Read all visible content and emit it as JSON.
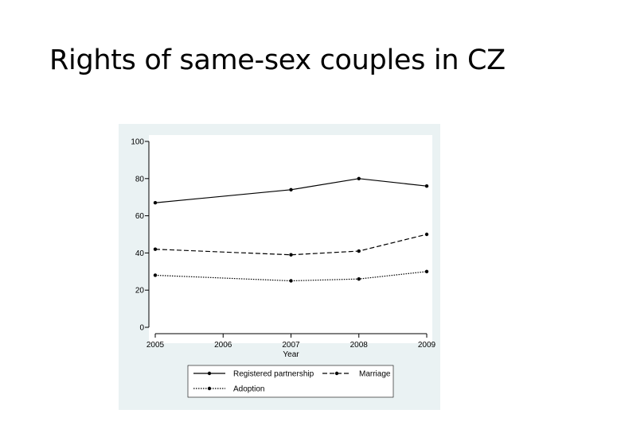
{
  "slide": {
    "title": "Rights of same-sex couples in CZ"
  },
  "chart_data": {
    "type": "line",
    "title": "",
    "xlabel": "Year",
    "ylabel": "",
    "x": [
      2005,
      2007,
      2008,
      2009
    ],
    "x_ticks": [
      "2005",
      "2006",
      "2007",
      "2008",
      "2009"
    ],
    "y_ticks": [
      "0",
      "20",
      "40",
      "60",
      "80",
      "100"
    ],
    "xlim": [
      2005,
      2009
    ],
    "ylim": [
      0,
      100
    ],
    "grid": false,
    "legend_position": "bottom",
    "series": [
      {
        "name": "Registered partnership",
        "values": [
          67,
          74,
          80,
          76
        ],
        "style": "solid",
        "color": "#000000"
      },
      {
        "name": "Marriage",
        "values": [
          42,
          39,
          41,
          50
        ],
        "style": "dashed",
        "color": "#000000"
      },
      {
        "name": "Adoption",
        "values": [
          28,
          25,
          26,
          30
        ],
        "style": "dotted",
        "color": "#000000"
      }
    ]
  }
}
